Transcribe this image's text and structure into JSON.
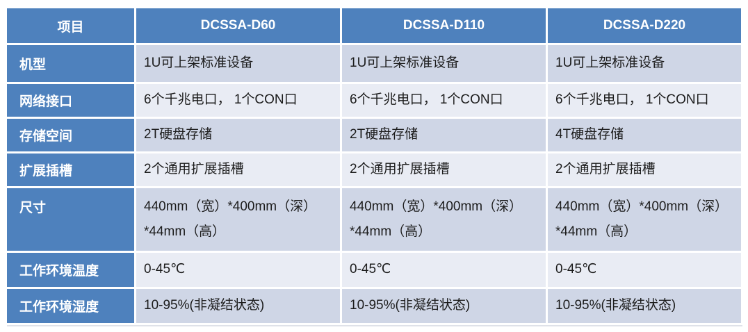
{
  "table": {
    "columns": [
      "项目",
      "DCSSA-D60",
      "DCSSA-D110",
      "DCSSA-D220"
    ],
    "rows": [
      {
        "label": "机型",
        "values": [
          "1U可上架标准设备",
          "1U可上架标准设备",
          "1U可上架标准设备"
        ]
      },
      {
        "label": "网络接口",
        "values": [
          "6个千兆电口， 1个CON口",
          "6个千兆电口， 1个CON口",
          "6个千兆电口， 1个CON口"
        ]
      },
      {
        "label": "存储空间",
        "values": [
          "2T硬盘存储",
          "2T硬盘存储",
          "4T硬盘存储"
        ]
      },
      {
        "label": "扩展插槽",
        "values": [
          "2个通用扩展插槽",
          "2个通用扩展插槽",
          "2个通用扩展插槽"
        ]
      },
      {
        "label": "尺寸",
        "values": [
          "440mm（宽）*400mm（深）\n*44mm（高）",
          "440mm（宽）*400mm（深）\n*44mm（高）",
          "440mm（宽）*400mm（深）\n*44mm（高）"
        ]
      },
      {
        "label": "工作环境温度",
        "values": [
          "0-45℃",
          "0-45℃",
          "0-45℃"
        ]
      },
      {
        "label": "工作环境湿度",
        "values": [
          "10-95%(非凝结状态)",
          "10-95%(非凝结状态)",
          "10-95%(非凝结状态)"
        ]
      }
    ]
  },
  "colors": {
    "header_bg": "#4e81bd",
    "header_text": "#ffffff",
    "band_dark": "#cfd6e6",
    "band_light": "#e9ecf4",
    "cell_text": "#1c1c1c",
    "page_bg": "#ffffff"
  }
}
